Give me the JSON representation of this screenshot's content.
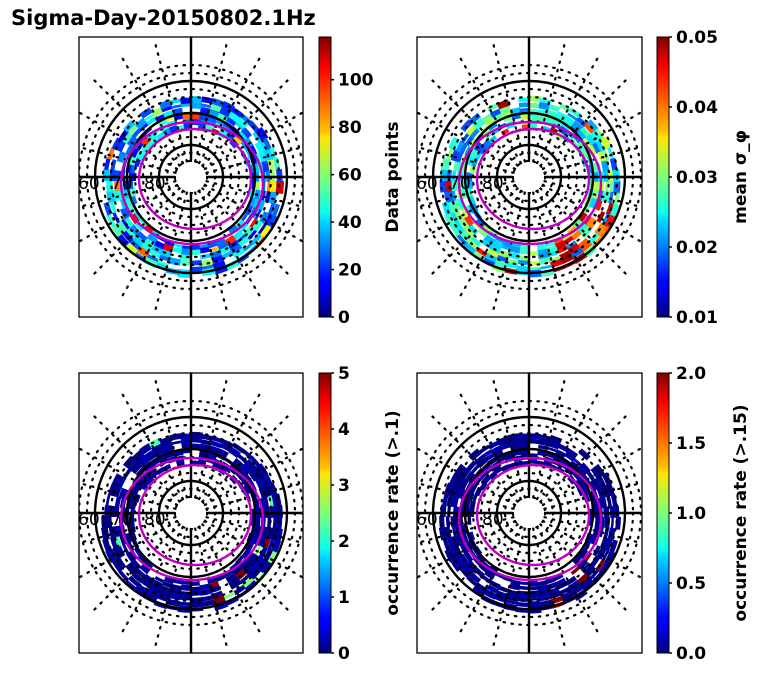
{
  "title": "Sigma-Day-20150802.1Hz",
  "chart_data": [
    {
      "type": "heatmap",
      "projection": "polar (magnetic latitude / MLT)",
      "panel": "top-left",
      "colorbar": {
        "label": "Data points",
        "range": [
          0,
          118
        ],
        "ticks": [
          "0",
          "20",
          "40",
          "60",
          "80",
          "100"
        ],
        "tick_values": [
          0,
          20,
          40,
          60,
          80,
          100
        ],
        "colormap": "jet"
      },
      "lat_labels": [
        "60",
        "70",
        "80"
      ],
      "lat_circles_solid": [
        60,
        70,
        80
      ],
      "oval_color": "#c000c0",
      "dominant_level": "low-mid (blue to cyan), peaks ~100+ near dawn/dusk",
      "seed": 11
    },
    {
      "type": "heatmap",
      "projection": "polar (magnetic latitude / MLT)",
      "panel": "top-right",
      "colorbar": {
        "label": "mean σ_φ",
        "range": [
          0.01,
          0.05
        ],
        "ticks": [
          "0.01",
          "0.02",
          "0.03",
          "0.04",
          "0.05"
        ],
        "tick_values": [
          0.01,
          0.02,
          0.03,
          0.04,
          0.05
        ],
        "colormap": "jet"
      },
      "lat_labels": [
        "60",
        "70",
        "80"
      ],
      "lat_circles_solid": [
        60,
        70,
        80
      ],
      "oval_color": "#c000c0",
      "dominant_level": "0.02-0.03 with maxima ~0.05 in post-midnight sector",
      "seed": 23
    },
    {
      "type": "heatmap",
      "projection": "polar (magnetic latitude / MLT)",
      "panel": "bottom-left",
      "colorbar": {
        "label": "occurrence rate (>.1)",
        "range": [
          0,
          5
        ],
        "ticks": [
          "0",
          "1",
          "2",
          "3",
          "4",
          "5"
        ],
        "tick_values": [
          0,
          1,
          2,
          3,
          4,
          5
        ],
        "colormap": "jet"
      },
      "lat_labels": [
        "60",
        "70",
        "80"
      ],
      "lat_circles_solid": [
        60,
        70,
        80
      ],
      "oval_color": "#c000c0",
      "dominant_level": "~0 nearly everywhere; a few bins ~2.5-5 in post-midnight sector",
      "seed": 37
    },
    {
      "type": "heatmap",
      "projection": "polar (magnetic latitude / MLT)",
      "panel": "bottom-right",
      "colorbar": {
        "label": "occurrence rate (>.15)",
        "range": [
          0.0,
          2.0
        ],
        "ticks": [
          "0.0",
          "0.5",
          "1.0",
          "1.5",
          "2.0"
        ],
        "tick_values": [
          0.0,
          0.5,
          1.0,
          1.5,
          2.0
        ],
        "colormap": "jet"
      },
      "lat_labels": [
        "60",
        "70",
        "80"
      ],
      "lat_circles_solid": [
        60,
        70,
        80
      ],
      "oval_color": "#c000c0",
      "dominant_level": "~0 nearly everywhere; a few bins ~2 in post-midnight sector",
      "seed": 51
    }
  ]
}
